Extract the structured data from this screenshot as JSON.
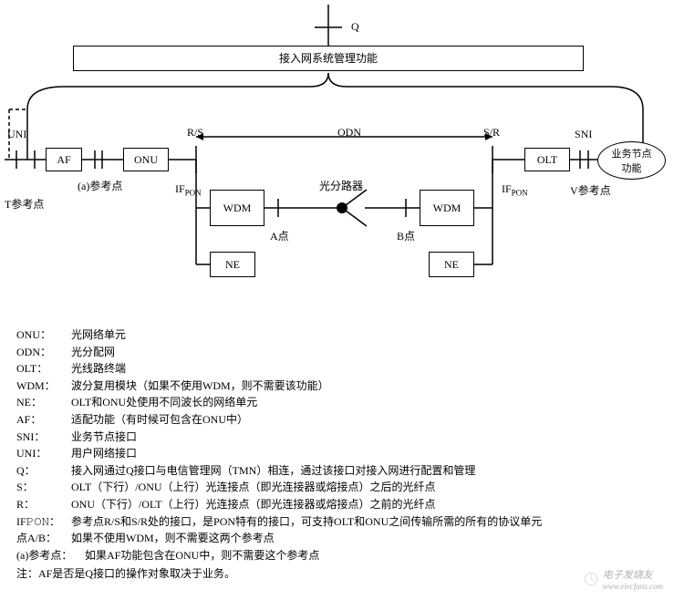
{
  "diagram": {
    "q_label": "Q",
    "mgmt_title": "接入网系统管理功能",
    "uni_label": "UNI",
    "sni_label": "SNI",
    "rs_label": "R/S",
    "sr_label": "S/R",
    "odn_label": "ODN",
    "af_label": "AF",
    "onu_label": "ONU",
    "olt_label": "OLT",
    "wdm_label": "WDM",
    "ne_label": "NE",
    "service_node": "业务节点\n功能",
    "splitter_label": "光分路器",
    "a_ref_label": "(a)参考点",
    "t_ref_label": "T参考点",
    "ifpon_left": "IF",
    "ifpon_left_sub": "PON",
    "ifpon_right": "IF",
    "ifpon_right_sub": "PON",
    "a_point": "A点",
    "b_point": "B点",
    "v_ref": "V参考点",
    "colors": {
      "line": "#000000",
      "bg": "#ffffff"
    }
  },
  "legend": [
    {
      "term": "ONU：",
      "def": "光网络单元"
    },
    {
      "term": "ODN：",
      "def": "光分配网"
    },
    {
      "term": "OLT：",
      "def": "光线路终端"
    },
    {
      "term": "WDM：",
      "def": "波分复用模块（如果不使用WDM，则不需要该功能）"
    },
    {
      "term": "NE：",
      "def": "OLT和ONU处使用不同波长的网络单元"
    },
    {
      "term": "AF：",
      "def": "适配功能（有时候可包含在ONU中）"
    },
    {
      "term": "SNI：",
      "def": "业务节点接口"
    },
    {
      "term": "UNI：",
      "def": "用户网络接口"
    },
    {
      "term": "Q：",
      "def": "接入网通过Q接口与电信管理网（TMN）相连，通过该接口对接入网进行配置和管理"
    },
    {
      "term": "S：",
      "def": "OLT（下行）/ONU（上行）光连接点（即光连接器或熔接点）之后的光纤点"
    },
    {
      "term": "R：",
      "def": "ONU（下行）/OLT（上行）光连接点（即光连接器或熔接点）之前的光纤点"
    },
    {
      "term": "IF𝙿𝙾𝙽：",
      "def": "参考点R/S和S/R处的接口，是PON特有的接口，可支持OLT和ONU之间传输所需的所有的协议单元"
    },
    {
      "term": "点A/B：",
      "def": "如果不使用WDM，则不需要这两个参考点"
    },
    {
      "term": "(a)参考点：",
      "def": "如果AF功能包含在ONU中，则不需要这个参考点"
    }
  ],
  "note": "注：AF是否是Q接口的操作对象取决于业务。",
  "watermark": {
    "text": "电子发烧友",
    "url": "www.elecfans.com"
  }
}
